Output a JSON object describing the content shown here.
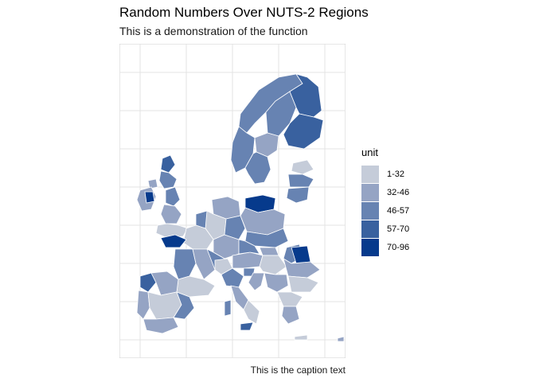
{
  "title": "Random Numbers Over NUTS-2 Regions",
  "subtitle": "This is a demonstration of the function",
  "caption": "This is the caption text",
  "legend": {
    "title": "unit",
    "items": [
      {
        "label": "1-32",
        "color": "#c5ccd9"
      },
      {
        "label": "32-46",
        "color": "#95a4c4"
      },
      {
        "label": "46-57",
        "color": "#6783b2"
      },
      {
        "label": "57-70",
        "color": "#39619f"
      },
      {
        "label": "70-96",
        "color": "#063a8c"
      }
    ]
  },
  "map": {
    "type": "choropleth",
    "background": "#ffffff",
    "grid_color": "#dcdcdc",
    "border_color": "#ffffff",
    "grid": true
  }
}
